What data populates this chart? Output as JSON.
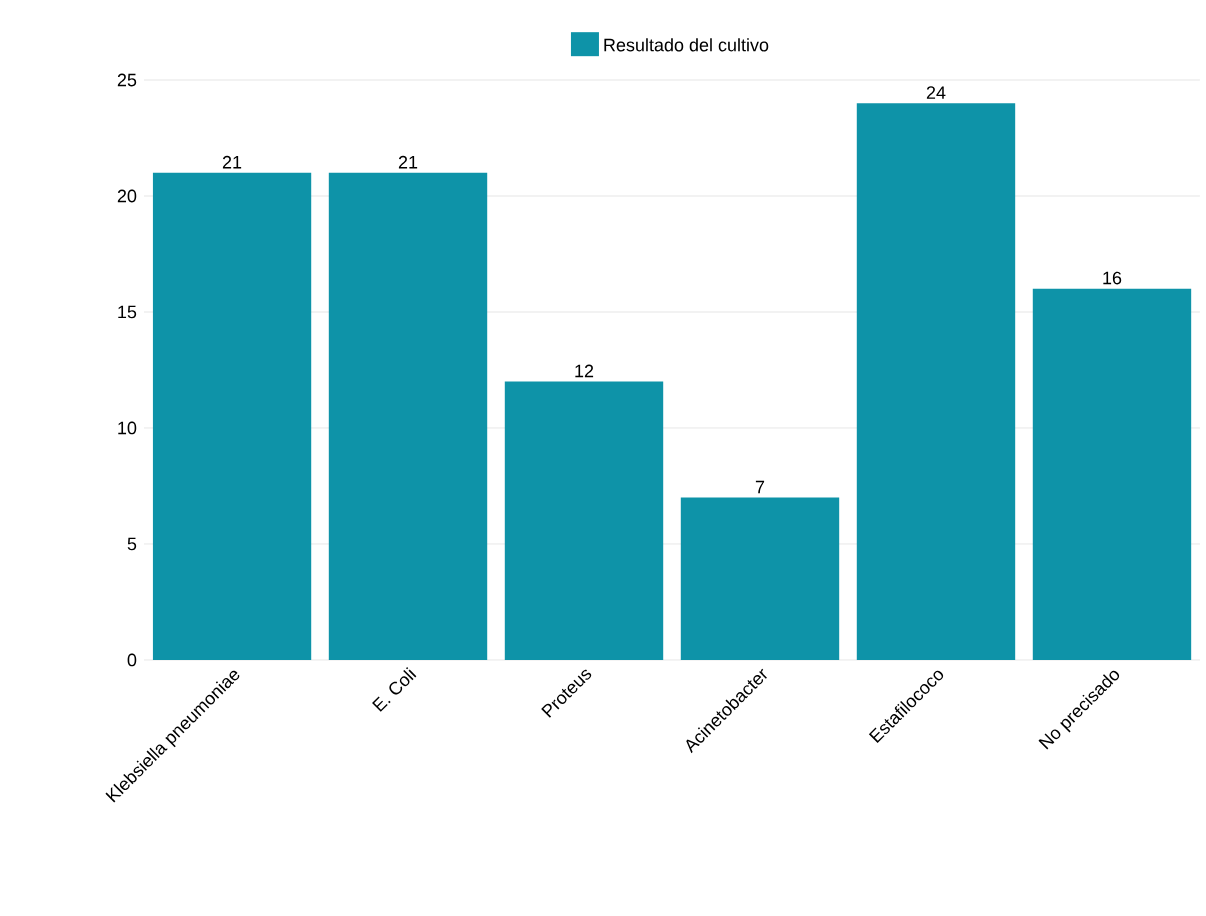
{
  "chart_data": {
    "type": "bar",
    "categories": [
      "Klebsiella pneumoniae",
      "E. Coli",
      "Proteus",
      "Acinetobacter",
      "Estafilococo",
      "No precisado"
    ],
    "series": [
      {
        "name": "Resultado del cultivo",
        "color": "#0e93a8",
        "values": [
          21,
          21,
          12,
          7,
          24,
          16
        ]
      }
    ],
    "ylim": [
      0,
      25
    ],
    "yticks": [
      0,
      5,
      10,
      15,
      20,
      25
    ],
    "grid": "y",
    "legend": "top",
    "data_labels": true
  }
}
